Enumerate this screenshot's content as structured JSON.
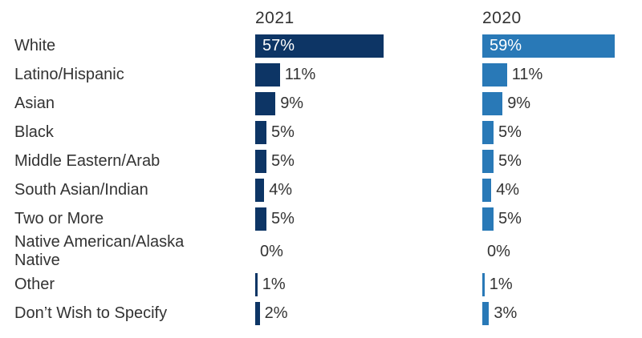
{
  "chart_data": {
    "type": "bar",
    "orientation": "horizontal",
    "title": "",
    "categories": [
      "White",
      "Latino/Hispanic",
      "Asian",
      "Black",
      "Middle Eastern/Arab",
      "South Asian/Indian",
      "Two or More",
      "Native American/Alaska\nNative",
      "Other",
      "Don’t Wish to Specify"
    ],
    "series": [
      {
        "name": "2021",
        "color": "#0D3565",
        "values": [
          57,
          11,
          9,
          5,
          5,
          4,
          5,
          0,
          1,
          2
        ]
      },
      {
        "name": "2020",
        "color": "#2979B7",
        "values": [
          59,
          11,
          9,
          5,
          5,
          4,
          5,
          0,
          1,
          3
        ]
      }
    ],
    "value_suffix": "%",
    "value_labels": "every bar labeled; label inside bar for values >= 50, outside otherwise",
    "xlim": [
      0,
      100
    ],
    "grid": false,
    "axes_shown": false,
    "legend_position": "column headers above each bar group",
    "text_color": "#333333",
    "background_color": "#ffffff"
  }
}
